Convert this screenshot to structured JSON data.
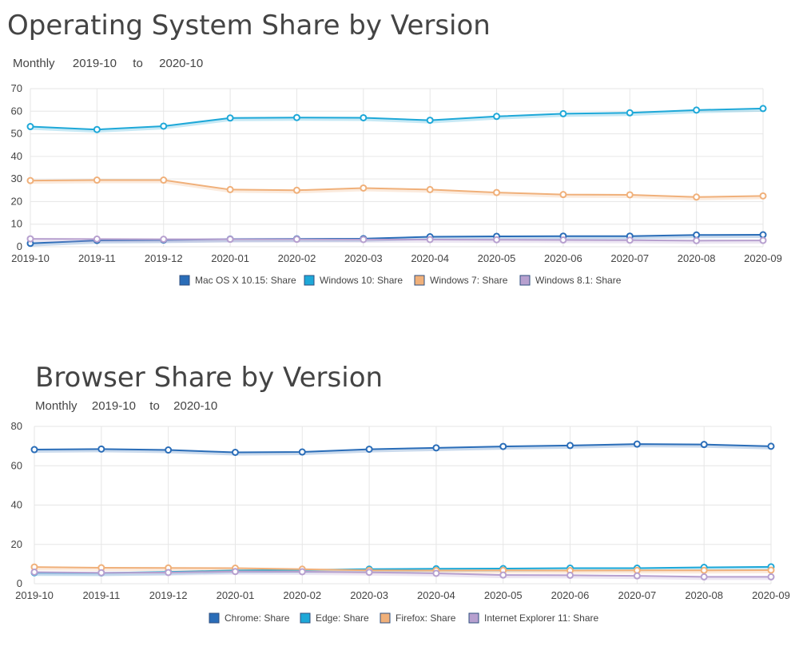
{
  "colors": {
    "mac": "#2a6db8",
    "win10": "#1ea8d8",
    "win7": "#f0b07a",
    "win81": "#b7a0cf",
    "chrome": "#2a6db8",
    "edge": "#1ea8d8",
    "firefox": "#f0b07a",
    "ie11": "#b7a0cf",
    "grid": "#e6e6e6"
  },
  "chart_data": [
    {
      "type": "line",
      "title": "Operating System Share by Version",
      "period_label": "Monthly",
      "range_start": "2019-10",
      "range_sep": "to",
      "range_end": "2020-10",
      "categories": [
        "2019-10",
        "2019-11",
        "2019-12",
        "2020-01",
        "2020-02",
        "2020-03",
        "2020-04",
        "2020-05",
        "2020-06",
        "2020-07",
        "2020-08",
        "2020-09"
      ],
      "y_ticks": [
        0,
        10,
        20,
        30,
        40,
        50,
        60,
        70
      ],
      "ylim": [
        0,
        70
      ],
      "grid": true,
      "legend_position": "bottom",
      "series": [
        {
          "name": "Mac OS X 10.15: Share",
          "color_key": "mac",
          "values": [
            1.5,
            2.8,
            3.0,
            3.4,
            3.5,
            3.6,
            4.4,
            4.6,
            4.7,
            4.7,
            5.2,
            5.3
          ]
        },
        {
          "name": "Windows 10: Share",
          "color_key": "win10",
          "values": [
            53.2,
            51.9,
            53.4,
            57.0,
            57.2,
            57.1,
            56.0,
            57.7,
            58.9,
            59.3,
            60.5,
            61.2
          ]
        },
        {
          "name": "Windows 7: Share",
          "color_key": "win7",
          "values": [
            29.3,
            29.5,
            29.5,
            25.3,
            25.0,
            26.0,
            25.3,
            24.0,
            23.1,
            23.0,
            22.0,
            22.5
          ]
        },
        {
          "name": "Windows 8.1: Share",
          "color_key": "win81",
          "values": [
            3.5,
            3.4,
            3.3,
            3.3,
            3.3,
            3.2,
            3.2,
            3.1,
            3.0,
            2.9,
            2.7,
            2.8
          ]
        }
      ]
    },
    {
      "type": "line",
      "title": "Browser Share by Version",
      "period_label": "Monthly",
      "range_start": "2019-10",
      "range_sep": "to",
      "range_end": "2020-10",
      "categories": [
        "2019-10",
        "2019-11",
        "2019-12",
        "2020-01",
        "2020-02",
        "2020-03",
        "2020-04",
        "2020-05",
        "2020-06",
        "2020-07",
        "2020-08",
        "2020-09"
      ],
      "y_ticks": [
        0,
        20,
        40,
        60,
        80
      ],
      "ylim": [
        0,
        80
      ],
      "grid": true,
      "legend_position": "bottom",
      "series": [
        {
          "name": "Chrome: Share",
          "color_key": "chrome",
          "values": [
            68.2,
            68.5,
            68.0,
            66.8,
            67.0,
            68.4,
            69.1,
            69.8,
            70.3,
            71.0,
            70.8,
            69.9
          ]
        },
        {
          "name": "Edge: Share",
          "color_key": "edge",
          "values": [
            5.6,
            5.5,
            6.0,
            6.8,
            7.0,
            7.4,
            7.6,
            7.7,
            7.9,
            7.9,
            8.3,
            8.6
          ]
        },
        {
          "name": "Firefox: Share",
          "color_key": "firefox",
          "values": [
            8.5,
            8.1,
            8.0,
            7.9,
            7.4,
            6.8,
            6.7,
            6.8,
            6.7,
            6.8,
            6.8,
            6.9
          ]
        },
        {
          "name": "Internet Explorer 11: Share",
          "color_key": "ie11",
          "values": [
            5.9,
            5.6,
            5.7,
            6.2,
            6.1,
            5.8,
            5.3,
            4.4,
            4.3,
            4.0,
            3.5,
            3.5
          ]
        }
      ]
    }
  ]
}
